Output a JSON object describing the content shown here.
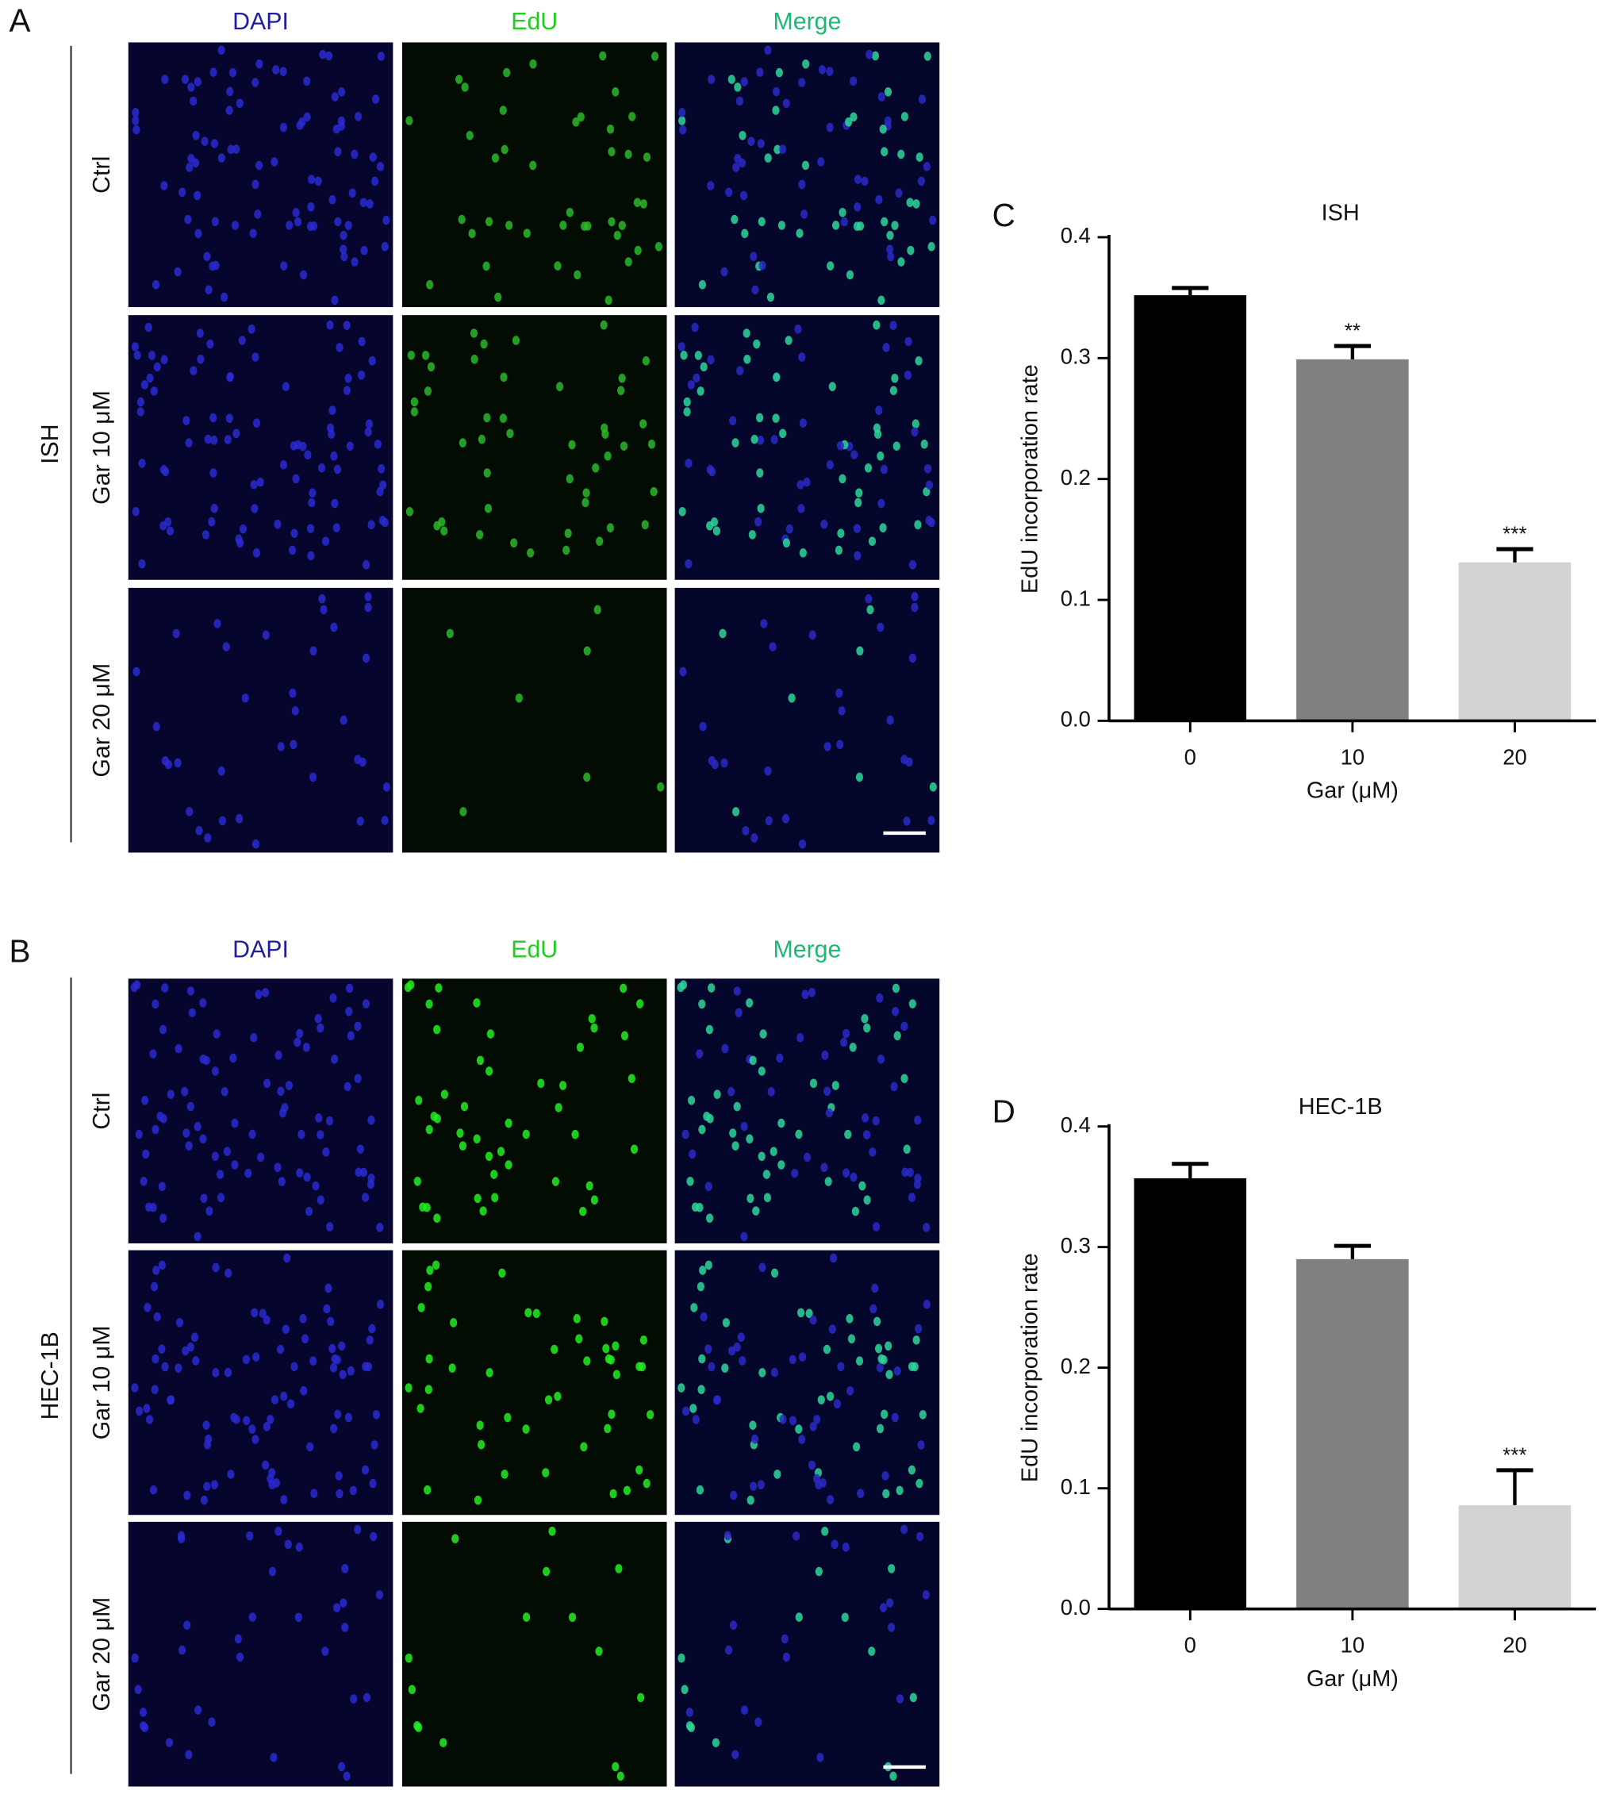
{
  "panels": [
    {
      "letter": "A",
      "cell_line": "ISH",
      "columns": [
        "DAPI",
        "EdU",
        "Merge"
      ],
      "rows": [
        "Ctrl",
        "Gar 10 μM",
        "Gar 20 μM"
      ]
    },
    {
      "letter": "B",
      "cell_line": "HEC-1B",
      "columns": [
        "DAPI",
        "EdU",
        "Merge"
      ],
      "rows": [
        "Ctrl",
        "Gar 10 μM",
        "Gar 20 μM"
      ]
    }
  ],
  "chart_data": [
    {
      "type": "bar",
      "letter": "C",
      "title": "ISH",
      "y_label": "EdU incorporation rate",
      "x_label": "Gar (μM)",
      "categories": [
        "0",
        "10",
        "20"
      ],
      "values": [
        0.352,
        0.299,
        0.131
      ],
      "errors": [
        0.006,
        0.011,
        0.011
      ],
      "annotations": [
        null,
        "**",
        "***"
      ],
      "colors": [
        "#000000",
        "#808080",
        "#d3d3d3"
      ],
      "ylim": [
        0,
        0.4
      ],
      "yticks": [
        {
          "value": 0,
          "label": "0.0"
        },
        0.1,
        0.2,
        0.3,
        0.4
      ]
    },
    {
      "type": "bar",
      "letter": "D",
      "title": "HEC-1B",
      "y_label": "EdU incorporation rate",
      "x_label": "Gar (μM)",
      "categories": [
        "0",
        "10",
        "20"
      ],
      "values": [
        0.357,
        0.29,
        0.086
      ],
      "errors": [
        0.012,
        0.011,
        0.029
      ],
      "annotations": [
        null,
        null,
        "***"
      ],
      "colors": [
        "#000000",
        "#808080",
        "#d3d3d3"
      ],
      "ylim": [
        0,
        0.4
      ],
      "yticks": [
        {
          "value": 0,
          "label": "0.0"
        },
        0.1,
        0.2,
        0.3,
        0.4
      ]
    }
  ]
}
